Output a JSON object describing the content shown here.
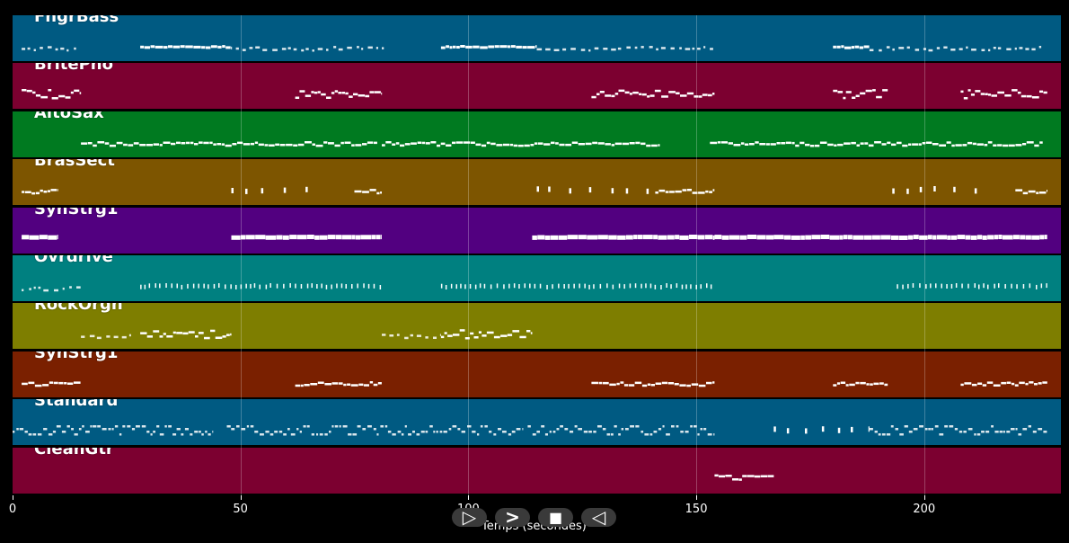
{
  "tracks": [
    {
      "name": "FngrBass",
      "color": "#005a82",
      "segments": [
        [
          2,
          15,
          "sparse"
        ],
        [
          28,
          48,
          "dense"
        ],
        [
          49,
          82,
          "sparse"
        ],
        [
          94,
          115,
          "dense"
        ],
        [
          115,
          154,
          "sparse"
        ],
        [
          180,
          188,
          "dense"
        ],
        [
          188,
          226,
          "sparse"
        ]
      ]
    },
    {
      "name": "BritePno",
      "color": "#7c0030",
      "segments": [
        [
          2,
          15,
          "chord"
        ],
        [
          62,
          81,
          "chord"
        ],
        [
          127,
          154,
          "chord"
        ],
        [
          180,
          192,
          "chord"
        ],
        [
          208,
          227,
          "chord"
        ]
      ]
    },
    {
      "name": "AltoSax",
      "color": "#007a20",
      "segments": [
        [
          15,
          80,
          "line"
        ],
        [
          81,
          142,
          "line"
        ],
        [
          153,
          226,
          "line"
        ]
      ]
    },
    {
      "name": "BrasSect",
      "color": "#7d5500",
      "segments": [
        [
          2,
          10,
          "line"
        ],
        [
          48,
          68,
          "dots"
        ],
        [
          75,
          81,
          "line"
        ],
        [
          115,
          140,
          "dots"
        ],
        [
          141,
          154,
          "line"
        ],
        [
          193,
          215,
          "dots"
        ],
        [
          220,
          227,
          "line"
        ]
      ]
    },
    {
      "name": "SynStrg1",
      "color": "#520080",
      "segments": [
        [
          2,
          10,
          "thick"
        ],
        [
          48,
          81,
          "thick"
        ],
        [
          114,
          154,
          "thick"
        ],
        [
          154,
          167,
          "thick"
        ],
        [
          167,
          227,
          "thick"
        ]
      ]
    },
    {
      "name": "Ovrdrive",
      "color": "#008080",
      "segments": [
        [
          2,
          15,
          "sparse"
        ],
        [
          28,
          81,
          "ticks"
        ],
        [
          94,
          154,
          "ticks"
        ],
        [
          194,
          227,
          "ticks"
        ]
      ]
    },
    {
      "name": "RockOrgn",
      "color": "#7e7e00",
      "segments": [
        [
          15,
          26,
          "sparse"
        ],
        [
          28,
          48,
          "chord"
        ],
        [
          81,
          94,
          "sparse"
        ],
        [
          94,
          114,
          "chord"
        ]
      ]
    },
    {
      "name": "SynStrg1",
      "color": "#7a2000",
      "segments": [
        [
          2,
          15,
          "line"
        ],
        [
          62,
          81,
          "line"
        ],
        [
          127,
          154,
          "line"
        ],
        [
          180,
          192,
          "line"
        ],
        [
          208,
          227,
          "line"
        ]
      ]
    },
    {
      "name": "Standard",
      "color": "#005a82",
      "segments": [
        [
          0,
          44,
          "drums"
        ],
        [
          47,
          112,
          "drums"
        ],
        [
          113,
          154,
          "drums"
        ],
        [
          167,
          188,
          "dots"
        ],
        [
          188,
          227,
          "drums"
        ]
      ]
    },
    {
      "name": "CleanGtr",
      "color": "#7c0030",
      "segments": [
        [
          154,
          167,
          "chord"
        ]
      ]
    }
  ],
  "x_axis": {
    "label": "Temps (secondes)",
    "ticks": [
      {
        "value": 0,
        "label": "0"
      },
      {
        "value": 50,
        "label": "50"
      },
      {
        "value": 100,
        "label": "100"
      },
      {
        "value": 150,
        "label": "150"
      },
      {
        "value": 200,
        "label": "200"
      }
    ],
    "max_seconds": 230
  },
  "controls": [
    {
      "name": "play-icon",
      "glyph": "▷"
    },
    {
      "name": "fast-forward-icon",
      "glyph": ">"
    },
    {
      "name": "stop-icon",
      "glyph": "■"
    },
    {
      "name": "rewind-icon",
      "glyph": "◁"
    }
  ]
}
